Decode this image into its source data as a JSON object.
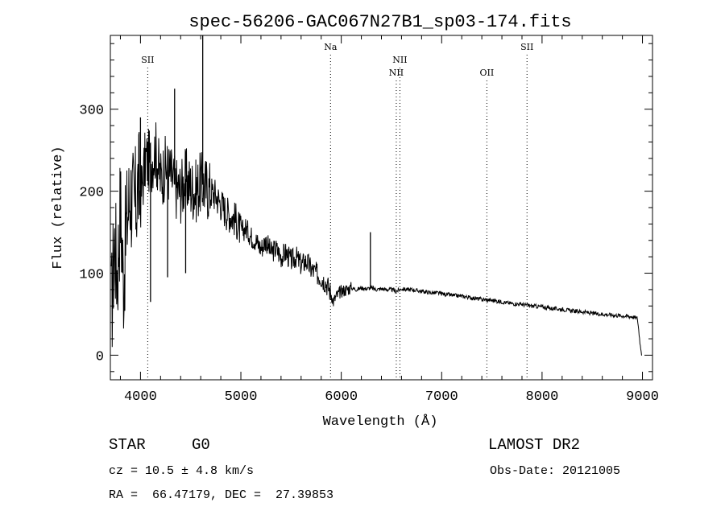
{
  "chart_data": {
    "type": "line",
    "title": "spec-56206-GAC067N27B1_sp03-174.fits",
    "xlabel": "Wavelength (Å)",
    "ylabel": "Flux (relative)",
    "xlim": [
      3700,
      9100
    ],
    "ylim": [
      -30,
      390
    ],
    "xticks": [
      4000,
      5000,
      6000,
      7000,
      8000,
      9000
    ],
    "yticks": [
      0,
      100,
      200,
      300
    ],
    "grid": false,
    "spectral_lines": [
      {
        "label": "SII",
        "wavelength": 4072,
        "row": 1
      },
      {
        "label": "Na",
        "wavelength": 5893,
        "row": 0
      },
      {
        "label": "NII",
        "wavelength": 6548,
        "row": 2
      },
      {
        "label": "NII",
        "wavelength": 6584,
        "row": 1
      },
      {
        "label": "OII",
        "wavelength": 7450,
        "row": 2
      },
      {
        "label": "SII",
        "wavelength": 7850,
        "row": 0
      }
    ],
    "series": [
      {
        "name": "flux",
        "points": [
          [
            3700,
            20
          ],
          [
            3740,
            140
          ],
          [
            3770,
            100
          ],
          [
            3800,
            185
          ],
          [
            3830,
            90
          ],
          [
            3860,
            160
          ],
          [
            3900,
            200
          ],
          [
            3940,
            175
          ],
          [
            3980,
            210
          ],
          [
            4000,
            190
          ],
          [
            4050,
            240
          ],
          [
            4100,
            235
          ],
          [
            4150,
            250
          ],
          [
            4200,
            215
          ],
          [
            4250,
            230
          ],
          [
            4300,
            220
          ],
          [
            4350,
            205
          ],
          [
            4400,
            200
          ],
          [
            4450,
            215
          ],
          [
            4500,
            205
          ],
          [
            4550,
            200
          ],
          [
            4600,
            210
          ],
          [
            4650,
            205
          ],
          [
            4700,
            200
          ],
          [
            4750,
            195
          ],
          [
            4800,
            185
          ],
          [
            4850,
            175
          ],
          [
            4900,
            170
          ],
          [
            4950,
            165
          ],
          [
            5000,
            150
          ],
          [
            5050,
            155
          ],
          [
            5100,
            145
          ],
          [
            5150,
            140
          ],
          [
            5200,
            130
          ],
          [
            5250,
            140
          ],
          [
            5300,
            125
          ],
          [
            5350,
            130
          ],
          [
            5400,
            120
          ],
          [
            5450,
            125
          ],
          [
            5500,
            115
          ],
          [
            5550,
            120
          ],
          [
            5600,
            110
          ],
          [
            5650,
            115
          ],
          [
            5700,
            105
          ],
          [
            5750,
            100
          ],
          [
            5800,
            95
          ],
          [
            5850,
            88
          ],
          [
            5900,
            75
          ],
          [
            5920,
            65
          ],
          [
            5950,
            72
          ],
          [
            6000,
            78
          ],
          [
            6050,
            80
          ],
          [
            6100,
            82
          ],
          [
            6150,
            80
          ],
          [
            6200,
            82
          ],
          [
            6250,
            81
          ],
          [
            6300,
            82
          ],
          [
            6350,
            80
          ],
          [
            6400,
            81
          ],
          [
            6450,
            80
          ],
          [
            6500,
            80
          ],
          [
            6550,
            78
          ],
          [
            6600,
            81
          ],
          [
            6650,
            80
          ],
          [
            6700,
            80
          ],
          [
            6750,
            79
          ],
          [
            6800,
            78
          ],
          [
            6850,
            77
          ],
          [
            6900,
            76
          ],
          [
            6950,
            76
          ],
          [
            7000,
            75
          ],
          [
            7100,
            73
          ],
          [
            7200,
            72
          ],
          [
            7300,
            70
          ],
          [
            7400,
            68
          ],
          [
            7500,
            67
          ],
          [
            7600,
            65
          ],
          [
            7700,
            63
          ],
          [
            7800,
            62
          ],
          [
            7900,
            60
          ],
          [
            8000,
            59
          ],
          [
            8100,
            57
          ],
          [
            8200,
            56
          ],
          [
            8300,
            54
          ],
          [
            8400,
            53
          ],
          [
            8500,
            51
          ],
          [
            8600,
            50
          ],
          [
            8700,
            49
          ],
          [
            8800,
            48
          ],
          [
            8900,
            47
          ],
          [
            8950,
            45
          ],
          [
            8980,
            10
          ],
          [
            9000,
            0
          ]
        ],
        "spikes": [
          {
            "wavelength": 4620,
            "value": 390
          },
          {
            "wavelength": 6290,
            "value": 150
          },
          {
            "wavelength": 4000,
            "value": 290
          },
          {
            "wavelength": 4340,
            "value": 325
          },
          {
            "wavelength": 4100,
            "value": 65
          },
          {
            "wavelength": 4450,
            "value": 100
          },
          {
            "wavelength": 4270,
            "value": 95
          }
        ]
      }
    ]
  },
  "info": {
    "object_class": "STAR",
    "subclass": "G0",
    "survey": "LAMOST DR2",
    "redshift": "cz = 10.5 ± 4.8 km/s",
    "obs_date": "Obs-Date: 20121005",
    "coords": "RA =  66.47179, DEC =  27.39853"
  }
}
